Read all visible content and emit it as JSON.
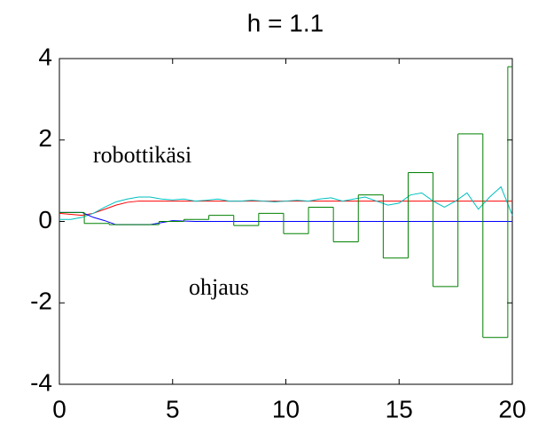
{
  "chart_data": {
    "type": "line",
    "title": "h = 1.1",
    "annotations": [
      "robottikäsi",
      "ohjaus"
    ],
    "xlim": [
      0,
      20
    ],
    "xticks": [
      0,
      5,
      10,
      15,
      20
    ],
    "ylim": [
      -4,
      4
    ],
    "yticks": [
      -4,
      -2,
      0,
      2,
      4
    ],
    "grid": false,
    "series": [
      {
        "color": "#ff0000",
        "step": false,
        "x": [
          0,
          1,
          1.5,
          2,
          2.5,
          3,
          3.5,
          4,
          20
        ],
        "values": [
          0.2,
          0.15,
          0.2,
          0.3,
          0.4,
          0.47,
          0.5,
          0.5,
          0.5
        ]
      },
      {
        "color": "#00bfbf",
        "step": false,
        "x": [
          0,
          0.5,
          1,
          1.5,
          2,
          2.5,
          3,
          3.5,
          4,
          4.5,
          5,
          5.5,
          6,
          6.5,
          7,
          7.5,
          8,
          8.5,
          9,
          9.5,
          10,
          10.5,
          11,
          11.5,
          12,
          12.5,
          13,
          13.5,
          14,
          14.5,
          15,
          15.5,
          16,
          16.5,
          17,
          17.5,
          18,
          18.5,
          19,
          19.5,
          20
        ],
        "values": [
          0.05,
          0.05,
          0.1,
          0.2,
          0.35,
          0.48,
          0.55,
          0.6,
          0.6,
          0.55,
          0.53,
          0.55,
          0.5,
          0.52,
          0.55,
          0.5,
          0.5,
          0.52,
          0.5,
          0.48,
          0.5,
          0.52,
          0.5,
          0.55,
          0.58,
          0.5,
          0.55,
          0.6,
          0.5,
          0.4,
          0.45,
          0.65,
          0.7,
          0.5,
          0.35,
          0.5,
          0.7,
          0.3,
          0.6,
          0.85,
          0.15
        ]
      },
      {
        "color": "#0000ff",
        "step": false,
        "x": [
          0,
          1,
          1.5,
          2,
          2.5,
          4,
          5,
          6,
          20
        ],
        "values": [
          0.22,
          0.22,
          0.1,
          0.02,
          -0.08,
          -0.08,
          0.02,
          0,
          0
        ]
      },
      {
        "color": "#008000",
        "step": true,
        "x": [
          0,
          1.1,
          2.2,
          3.3,
          4.4,
          5.5,
          6.6,
          7.7,
          8.8,
          9.9,
          11,
          12.1,
          13.2,
          14.3,
          15.4,
          16.5,
          17.6,
          18.7,
          19.8
        ],
        "values": [
          0.22,
          -0.05,
          -0.08,
          -0.08,
          0,
          0.05,
          0.15,
          -0.1,
          0.2,
          -0.3,
          0.35,
          -0.5,
          0.65,
          -0.9,
          1.2,
          -1.6,
          2.15,
          -2.85,
          3.8
        ]
      }
    ]
  }
}
